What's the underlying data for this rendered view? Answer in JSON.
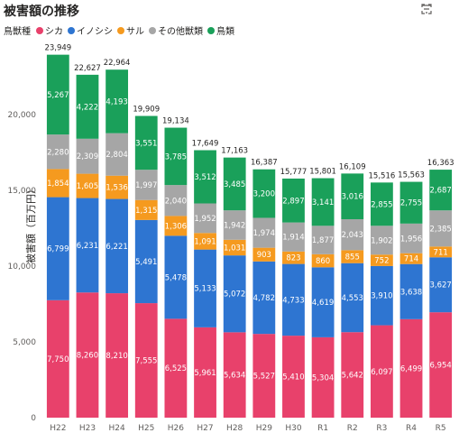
{
  "header": {
    "title": "被害額の推移"
  },
  "chart_data": {
    "type": "bar",
    "stacked": true,
    "title": "被害額の推移",
    "ylabel": "被害額（百万円）",
    "xlabel": "",
    "legend_title": "鳥獣種",
    "legend_position": "top-left",
    "grid": false,
    "ylim": [
      0,
      25000
    ],
    "yticks": [
      0,
      5000,
      10000,
      15000,
      20000
    ],
    "ytick_labels": [
      "0",
      "5,000",
      "10,000",
      "15,000",
      "20,000"
    ],
    "categories": [
      "H22",
      "H23",
      "H24",
      "H25",
      "H26",
      "H27",
      "H28",
      "H29",
      "H30",
      "R1",
      "R2",
      "R3",
      "R4",
      "R5"
    ],
    "series": [
      {
        "name": "シカ",
        "color": "#e8416b",
        "values": [
          7750,
          8260,
          8210,
          7555,
          6525,
          5961,
          5634,
          5527,
          5410,
          5304,
          5642,
          6097,
          6499,
          6954
        ]
      },
      {
        "name": "イノシシ",
        "color": "#2e75d1",
        "values": [
          6799,
          6231,
          6221,
          5491,
          5478,
          5133,
          5072,
          4782,
          4733,
          4619,
          4553,
          3910,
          3638,
          3627
        ]
      },
      {
        "name": "サル",
        "color": "#f59a1f",
        "values": [
          1854,
          1605,
          1536,
          1315,
          1306,
          1091,
          1031,
          903,
          823,
          860,
          855,
          752,
          714,
          711
        ]
      },
      {
        "name": "その他獣類",
        "color": "#a6a6a6",
        "values": [
          2280,
          2309,
          2804,
          1997,
          2040,
          1952,
          1942,
          1974,
          1914,
          1877,
          2043,
          1902,
          1956,
          2385
        ]
      },
      {
        "name": "鳥類",
        "color": "#1aa05a",
        "values": [
          5267,
          4222,
          4193,
          3551,
          3785,
          3512,
          3485,
          3200,
          2897,
          3141,
          3016,
          2855,
          2755,
          2687
        ]
      }
    ],
    "totals": [
      23949,
      22627,
      22964,
      19909,
      19134,
      17649,
      17163,
      16387,
      15777,
      15801,
      16109,
      15516,
      15563,
      16363
    ]
  },
  "icons": {
    "filter": "filter-icon",
    "focus": "focus-mode-icon"
  }
}
